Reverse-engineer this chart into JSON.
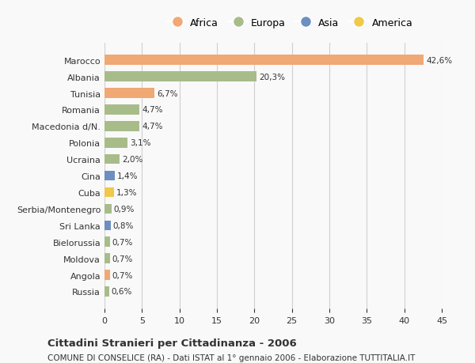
{
  "countries": [
    "Marocco",
    "Albania",
    "Tunisia",
    "Romania",
    "Macedonia d/N.",
    "Polonia",
    "Ucraina",
    "Cina",
    "Cuba",
    "Serbia/Montenegro",
    "Sri Lanka",
    "Bielorussia",
    "Moldova",
    "Angola",
    "Russia"
  ],
  "values": [
    42.6,
    20.3,
    6.7,
    4.7,
    4.7,
    3.1,
    2.0,
    1.4,
    1.3,
    0.9,
    0.8,
    0.7,
    0.7,
    0.7,
    0.6
  ],
  "labels": [
    "42,6%",
    "20,3%",
    "6,7%",
    "4,7%",
    "4,7%",
    "3,1%",
    "2,0%",
    "1,4%",
    "1,3%",
    "0,9%",
    "0,8%",
    "0,7%",
    "0,7%",
    "0,7%",
    "0,6%"
  ],
  "colors": [
    "#f0a875",
    "#a8bc8a",
    "#f0a875",
    "#a8bc8a",
    "#a8bc8a",
    "#a8bc8a",
    "#a8bc8a",
    "#6b8fbf",
    "#f0c84a",
    "#a8bc8a",
    "#6b8fbf",
    "#a8bc8a",
    "#a8bc8a",
    "#f0a875",
    "#a8bc8a"
  ],
  "legend_labels": [
    "Africa",
    "Europa",
    "Asia",
    "America"
  ],
  "legend_colors": [
    "#f0a875",
    "#a8bc8a",
    "#6b8fbf",
    "#f0c84a"
  ],
  "xlim": [
    0,
    45
  ],
  "xticks": [
    0,
    5,
    10,
    15,
    20,
    25,
    30,
    35,
    40,
    45
  ],
  "title": "Cittadini Stranieri per Cittadinanza - 2006",
  "subtitle": "COMUNE DI CONSELICE (RA) - Dati ISTAT al 1° gennaio 2006 - Elaborazione TUTTITALIA.IT",
  "bg_color": "#f9f9f9",
  "grid_color": "#d0d0d0",
  "text_color": "#333333"
}
